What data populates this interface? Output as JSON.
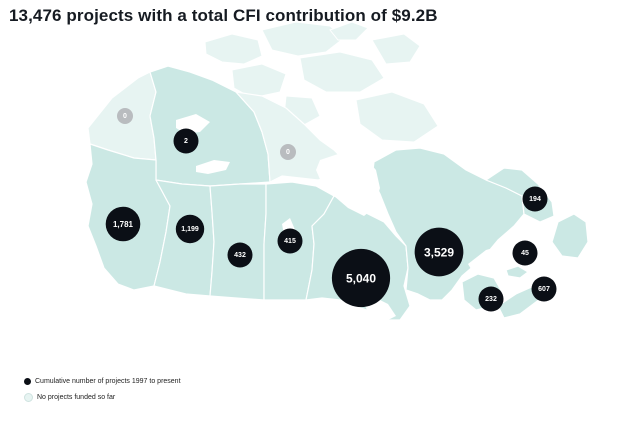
{
  "title": "13,476 projects with a total CFI contribution of $9.2B",
  "colors": {
    "funded": "#cbe8e4",
    "unfunded": "#e7f4f2",
    "bubble": "#0b0f16",
    "bubble_zero": "#b9bcbf",
    "border": "#ffffff"
  },
  "regions": [
    {
      "id": "yukon",
      "name": "Yukon",
      "projects": "0",
      "funded": false
    },
    {
      "id": "northwest-territories",
      "name": "Northwest Territories",
      "projects": "2",
      "funded": true
    },
    {
      "id": "nunavut",
      "name": "Nunavut",
      "projects": "0",
      "funded": false
    },
    {
      "id": "british-columbia",
      "name": "British Columbia",
      "projects": "1,781",
      "funded": true
    },
    {
      "id": "alberta",
      "name": "Alberta",
      "projects": "1,199",
      "funded": true
    },
    {
      "id": "saskatchewan",
      "name": "Saskatchewan",
      "projects": "432",
      "funded": true
    },
    {
      "id": "manitoba",
      "name": "Manitoba",
      "projects": "415",
      "funded": true
    },
    {
      "id": "ontario",
      "name": "Ontario",
      "projects": "5,040",
      "funded": true
    },
    {
      "id": "quebec",
      "name": "Quebec",
      "projects": "3,529",
      "funded": true
    },
    {
      "id": "newfoundland-and-labrador",
      "name": "Newfoundland and Labrador",
      "projects": "194",
      "funded": true
    },
    {
      "id": "prince-edward-island",
      "name": "Prince Edward Island",
      "projects": "45",
      "funded": true
    },
    {
      "id": "new-brunswick",
      "name": "New Brunswick",
      "projects": "232",
      "funded": true
    },
    {
      "id": "nova-scotia",
      "name": "Nova Scotia",
      "projects": "607",
      "funded": true
    }
  ],
  "legend": {
    "funded_label": "Cumulative number of projects 1997 to present",
    "unfunded_label": "No projects funded so far"
  }
}
